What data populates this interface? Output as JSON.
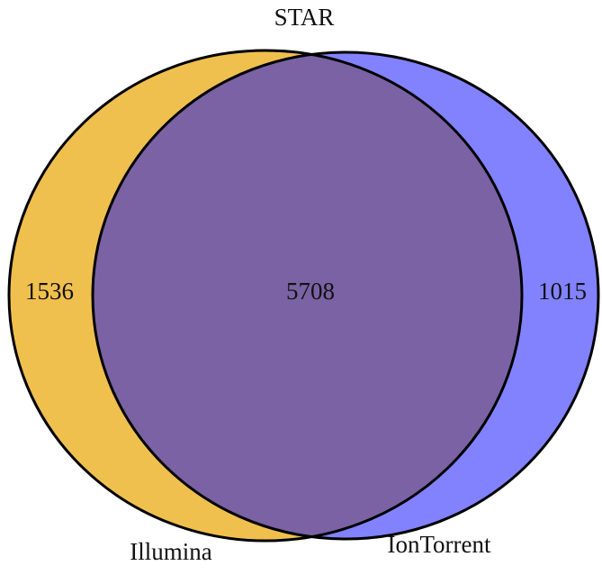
{
  "chart_data": {
    "type": "venn",
    "title": "STAR",
    "sets": [
      {
        "name": "Illumina",
        "color": "#f0c04f"
      },
      {
        "name": "IonTorrent",
        "color": "#8282ff"
      }
    ],
    "intersection_color": "#7a62a4",
    "values": [
      1536,
      5708,
      1015
    ]
  }
}
